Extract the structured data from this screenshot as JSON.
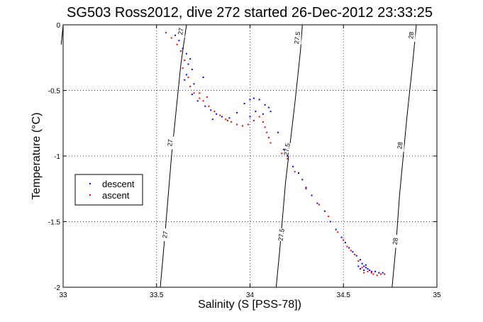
{
  "chart_data": {
    "type": "scatter",
    "title": "SG503 Ross2012, dive 272 started 26-Dec-2012 23:33:25",
    "xlabel": "Salinity (S [PSS-78])",
    "ylabel": "Temperature (°C)",
    "xlim": [
      33,
      35
    ],
    "ylim": [
      -2,
      0
    ],
    "xticks": [
      {
        "v": 33,
        "label": "33"
      },
      {
        "v": 33.5,
        "label": "33.5"
      },
      {
        "v": 34,
        "label": "34"
      },
      {
        "v": 34.5,
        "label": "34.5"
      },
      {
        "v": 35,
        "label": "35"
      }
    ],
    "yticks": [
      {
        "v": 0,
        "label": "0"
      },
      {
        "v": -0.5,
        "label": "-0.5"
      },
      {
        "v": -1,
        "label": "-1"
      },
      {
        "v": -1.5,
        "label": "-1.5"
      },
      {
        "v": -2,
        "label": "-2"
      }
    ],
    "grid": true,
    "legend_position": "left",
    "density_contours": [
      {
        "label": "27",
        "points": [
          [
            33.52,
            -2.0
          ],
          [
            33.545,
            -1.6
          ],
          [
            33.58,
            -1.0
          ],
          [
            33.63,
            -0.3
          ],
          [
            33.66,
            0.0
          ]
        ],
        "label_positions": [
          [
            33.548,
            -1.6
          ],
          [
            33.575,
            -0.9
          ],
          [
            33.632,
            -0.05
          ]
        ]
      },
      {
        "label": "27.5",
        "points": [
          [
            34.14,
            -2.0
          ],
          [
            34.16,
            -1.7
          ],
          [
            34.19,
            -1.2
          ],
          [
            34.24,
            -0.6
          ],
          [
            34.27,
            -0.2
          ],
          [
            34.28,
            0.0
          ]
        ],
        "label_positions": [
          [
            34.17,
            -1.6
          ],
          [
            34.2,
            -0.95
          ],
          [
            34.255,
            -0.1
          ]
        ]
      },
      {
        "label": "28",
        "points": [
          [
            34.76,
            -2.0
          ],
          [
            34.78,
            -1.7
          ],
          [
            34.8,
            -1.3
          ],
          [
            34.84,
            -0.7
          ],
          [
            34.87,
            -0.3
          ],
          [
            34.89,
            0.0
          ]
        ],
        "label_positions": [
          [
            34.78,
            -1.65
          ],
          [
            34.805,
            -0.92
          ],
          [
            34.865,
            -0.08
          ]
        ]
      },
      {
        "label": "",
        "points": [
          [
            32.99,
            -0.15
          ],
          [
            33.0,
            0.0
          ]
        ],
        "label_positions": []
      }
    ],
    "series": [
      {
        "name": "descent",
        "color": "#0000ff",
        "marker": "dot",
        "points": [
          [
            33.6,
            -0.08
          ],
          [
            33.62,
            -0.12
          ],
          [
            33.64,
            -0.18
          ],
          [
            33.66,
            -0.22
          ],
          [
            33.68,
            -0.26
          ],
          [
            33.67,
            -0.3
          ],
          [
            33.69,
            -0.34
          ],
          [
            33.66,
            -0.38
          ],
          [
            33.65,
            -0.42
          ],
          [
            33.7,
            -0.45
          ],
          [
            33.75,
            -0.4
          ],
          [
            33.69,
            -0.53
          ],
          [
            33.72,
            -0.58
          ],
          [
            33.76,
            -0.62
          ],
          [
            33.79,
            -0.65
          ],
          [
            33.82,
            -0.68
          ],
          [
            33.8,
            -0.72
          ],
          [
            33.85,
            -0.7
          ],
          [
            33.89,
            -0.71
          ],
          [
            33.93,
            -0.67
          ],
          [
            33.97,
            -0.6
          ],
          [
            34.0,
            -0.57
          ],
          [
            34.02,
            -0.56
          ],
          [
            34.05,
            -0.57
          ],
          [
            34.08,
            -0.61
          ],
          [
            34.1,
            -0.63
          ],
          [
            34.11,
            -0.66
          ],
          [
            34.07,
            -0.68
          ],
          [
            34.03,
            -0.66
          ],
          [
            34.0,
            -0.7
          ],
          [
            34.15,
            -0.82
          ],
          [
            34.18,
            -0.95
          ],
          [
            34.2,
            -1.0
          ],
          [
            34.23,
            -1.08
          ],
          [
            34.26,
            -1.13
          ],
          [
            34.28,
            -1.18
          ],
          [
            34.3,
            -1.24
          ],
          [
            34.33,
            -1.3
          ],
          [
            34.36,
            -1.36
          ],
          [
            34.4,
            -1.42
          ],
          [
            34.43,
            -1.5
          ],
          [
            34.46,
            -1.56
          ],
          [
            34.49,
            -1.62
          ],
          [
            34.51,
            -1.66
          ],
          [
            34.53,
            -1.7
          ],
          [
            34.55,
            -1.73
          ],
          [
            34.57,
            -1.76
          ],
          [
            34.59,
            -1.79
          ],
          [
            34.6,
            -1.82
          ],
          [
            34.61,
            -1.84
          ],
          [
            34.62,
            -1.85
          ],
          [
            34.63,
            -1.86
          ],
          [
            34.65,
            -1.88
          ],
          [
            34.67,
            -1.88
          ],
          [
            34.69,
            -1.89
          ],
          [
            34.71,
            -1.89
          ],
          [
            34.59,
            -1.86
          ],
          [
            34.61,
            -1.87
          ],
          [
            34.64,
            -1.87
          ],
          [
            34.58,
            -1.84
          ],
          [
            34.62,
            -1.83
          ]
        ]
      },
      {
        "name": "ascent",
        "color": "#ff0000",
        "marker": "dot",
        "points": [
          [
            33.55,
            -0.06
          ],
          [
            33.58,
            -0.1
          ],
          [
            33.61,
            -0.15
          ],
          [
            33.63,
            -0.2
          ],
          [
            33.65,
            -0.27
          ],
          [
            33.64,
            -0.33
          ],
          [
            33.67,
            -0.4
          ],
          [
            33.68,
            -0.47
          ],
          [
            33.7,
            -0.52
          ],
          [
            33.73,
            -0.56
          ],
          [
            33.75,
            -0.58
          ],
          [
            33.78,
            -0.62
          ],
          [
            33.81,
            -0.66
          ],
          [
            33.84,
            -0.69
          ],
          [
            33.87,
            -0.72
          ],
          [
            33.9,
            -0.74
          ],
          [
            33.93,
            -0.76
          ],
          [
            33.96,
            -0.77
          ],
          [
            33.99,
            -0.76
          ],
          [
            34.02,
            -0.73
          ],
          [
            34.05,
            -0.7
          ],
          [
            34.07,
            -0.74
          ],
          [
            34.08,
            -0.78
          ],
          [
            34.09,
            -0.82
          ],
          [
            34.1,
            -0.86
          ],
          [
            34.11,
            -0.9
          ],
          [
            34.17,
            -0.98
          ],
          [
            34.2,
            -1.02
          ],
          [
            34.24,
            -1.12
          ],
          [
            34.3,
            -1.25
          ],
          [
            34.37,
            -1.37
          ],
          [
            34.42,
            -1.46
          ],
          [
            34.47,
            -1.58
          ],
          [
            34.5,
            -1.64
          ],
          [
            34.52,
            -1.69
          ],
          [
            34.54,
            -1.72
          ],
          [
            34.56,
            -1.75
          ],
          [
            34.58,
            -1.8
          ],
          [
            34.6,
            -1.85
          ],
          [
            34.63,
            -1.88
          ],
          [
            34.66,
            -1.9
          ],
          [
            34.7,
            -1.9
          ],
          [
            34.72,
            -1.9
          ],
          [
            34.65,
            -1.89
          ],
          [
            34.61,
            -1.89
          ],
          [
            34.68,
            -1.91
          ],
          [
            33.73,
            -0.52
          ],
          [
            33.77,
            -0.55
          ],
          [
            33.88,
            -0.73
          ]
        ]
      }
    ]
  }
}
